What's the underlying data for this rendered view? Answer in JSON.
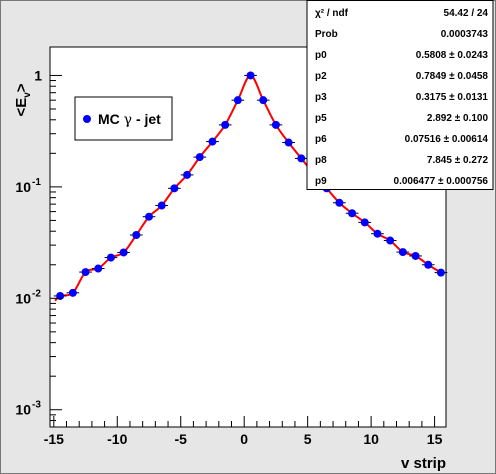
{
  "chart_data": {
    "type": "scatter",
    "title": "",
    "xlabel": "v strip",
    "ylabel": "<E_v>",
    "ylabel_base": "<E",
    "ylabel_sub": "v",
    "ylabel_close": ">",
    "xlim": [
      -15.3,
      15.9
    ],
    "ylim": [
      0.0007,
      1.8
    ],
    "yscale": "log",
    "x_ticks": [
      -15,
      -10,
      -5,
      0,
      5,
      10,
      15
    ],
    "y_ticks": [
      {
        "value": 1,
        "label_base": "1",
        "label_exp": ""
      },
      {
        "value": 0.1,
        "label_base": "10",
        "label_exp": "-1"
      },
      {
        "value": 0.01,
        "label_base": "10",
        "label_exp": "-2"
      },
      {
        "value": 0.001,
        "label_base": "10",
        "label_exp": "-3"
      }
    ],
    "legend_position": "top-left",
    "series": [
      {
        "name": "MC γ - jet",
        "legend_prefix": "MC",
        "legend_symbol": "γ",
        "legend_suffix": "- jet",
        "color": "#0000ff",
        "x": [
          -14.5,
          -13.5,
          -12.5,
          -11.5,
          -10.5,
          -9.5,
          -8.5,
          -7.5,
          -6.5,
          -5.5,
          -4.5,
          -3.5,
          -2.5,
          -1.5,
          -0.5,
          0.5,
          1.5,
          2.5,
          3.5,
          4.5,
          5.5,
          6.5,
          7.5,
          8.5,
          9.5,
          10.5,
          11.5,
          12.5,
          13.5,
          14.5,
          15.5
        ],
        "y": [
          0.0105,
          0.0112,
          0.0172,
          0.0185,
          0.0232,
          0.0258,
          0.037,
          0.054,
          0.068,
          0.097,
          0.128,
          0.185,
          0.255,
          0.36,
          0.6,
          1.0,
          0.6,
          0.36,
          0.25,
          0.18,
          0.13,
          0.097,
          0.072,
          0.058,
          0.048,
          0.038,
          0.033,
          0.026,
          0.024,
          0.02,
          0.017
        ]
      }
    ],
    "fit_line": {
      "color": "#ff0000",
      "style": "solid"
    },
    "fit_params": {
      "p0": 0.5808,
      "p2": 0.7849,
      "p3": 0.3175,
      "p5": 2.892,
      "p6": 0.07516,
      "p8": 7.845,
      "p9": 0.006477
    },
    "stats": [
      {
        "label": "χ² / ndf",
        "value": "54.42 / 24"
      },
      {
        "label": "Prob",
        "value": "0.0003743"
      },
      {
        "label": "p0",
        "value": "0.5808 ± 0.0243"
      },
      {
        "label": "p2",
        "value": "0.7849 ± 0.0458"
      },
      {
        "label": "p3",
        "value": "0.3175 ± 0.0131"
      },
      {
        "label": "p5",
        "value": "2.892 ± 0.100"
      },
      {
        "label": "p6",
        "value": "0.07516 ± 0.00614"
      },
      {
        "label": "p8",
        "value": "7.845 ± 0.272"
      },
      {
        "label": "p9",
        "value": "0.006477 ± 0.000756"
      }
    ]
  }
}
